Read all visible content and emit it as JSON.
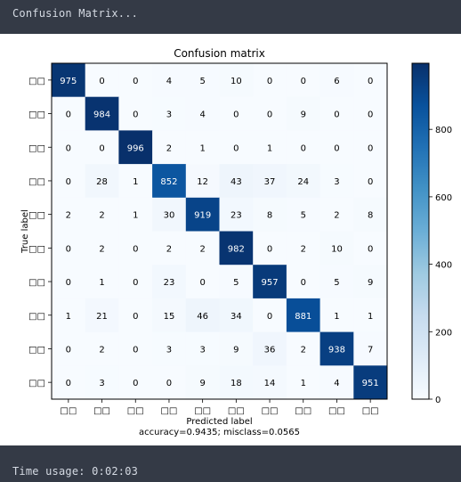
{
  "console": {
    "header": "Confusion Matrix...",
    "footer": "Time usage: 0:02:03"
  },
  "colors": {
    "background": "#343a46",
    "cmap_low": "#f7fbff",
    "cmap_high": "#08306b"
  },
  "chart_data": {
    "type": "heatmap",
    "title": "Confusion matrix",
    "xlabel": "Predicted label",
    "ylabel": "True label",
    "caption": "accuracy=0.9435; misclass=0.0565",
    "colormap": "Blues",
    "tick_label": "□□",
    "x_ticks": [
      "□□",
      "□□",
      "□□",
      "□□",
      "□□",
      "□□",
      "□□",
      "□□",
      "□□",
      "□□"
    ],
    "y_ticks": [
      "□□",
      "□□",
      "□□",
      "□□",
      "□□",
      "□□",
      "□□",
      "□□",
      "□□",
      "□□"
    ],
    "matrix": [
      [
        975,
        0,
        0,
        4,
        5,
        10,
        0,
        0,
        6,
        0
      ],
      [
        0,
        984,
        0,
        3,
        4,
        0,
        0,
        9,
        0,
        0
      ],
      [
        0,
        0,
        996,
        2,
        1,
        0,
        1,
        0,
        0,
        0
      ],
      [
        0,
        28,
        1,
        852,
        12,
        43,
        37,
        24,
        3,
        0
      ],
      [
        2,
        2,
        1,
        30,
        919,
        23,
        8,
        5,
        2,
        8
      ],
      [
        0,
        2,
        0,
        2,
        2,
        982,
        0,
        2,
        10,
        0
      ],
      [
        0,
        1,
        0,
        23,
        0,
        5,
        957,
        0,
        5,
        9
      ],
      [
        1,
        21,
        0,
        15,
        46,
        34,
        0,
        881,
        1,
        1
      ],
      [
        0,
        2,
        0,
        3,
        3,
        9,
        36,
        2,
        938,
        7
      ],
      [
        0,
        3,
        0,
        0,
        9,
        18,
        14,
        1,
        4,
        951
      ]
    ],
    "vmin": 0,
    "vmax": 996,
    "colorbar_ticks": [
      0,
      200,
      400,
      600,
      800
    ]
  }
}
